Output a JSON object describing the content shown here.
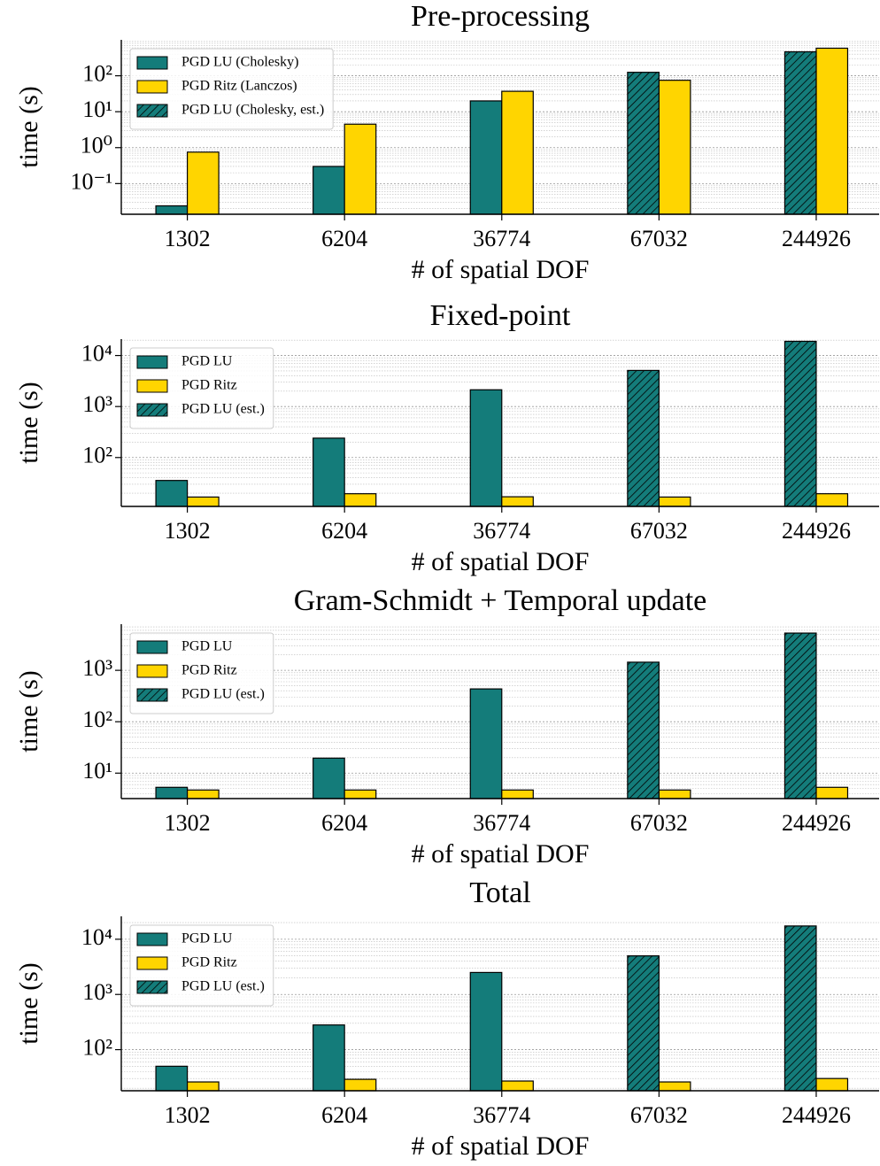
{
  "chart_data": [
    {
      "type": "bar",
      "title": "Pre-processing",
      "xlabel": "# of spatial DOF",
      "ylabel": "time (s)",
      "categories": [
        "1302",
        "6204",
        "36774",
        "67032",
        "244926"
      ],
      "log_scale": true,
      "grid": true,
      "legend": "upper left",
      "ylim": [
        0.014,
        1000
      ],
      "yticks": [
        {
          "value": 0.1,
          "label": "10⁻¹"
        },
        {
          "value": 1,
          "label": "10⁰"
        },
        {
          "value": 10,
          "label": "10¹"
        },
        {
          "value": 100,
          "label": "10²"
        }
      ],
      "series": [
        {
          "name": "PGD LU (Cholesky)",
          "color": "#147c7a",
          "hatch": false,
          "values": [
            0.024,
            0.3,
            20,
            null,
            null
          ]
        },
        {
          "name": "PGD Ritz (Lanczos)",
          "color": "#ffd500",
          "hatch": false,
          "values": [
            0.75,
            4.5,
            37,
            75,
            585
          ]
        },
        {
          "name": "PGD LU (Cholesky, est.)",
          "color": "#147c7a",
          "hatch": true,
          "values": [
            null,
            null,
            null,
            125,
            465
          ]
        }
      ]
    },
    {
      "type": "bar",
      "title": "Fixed-point",
      "xlabel": "# of spatial DOF",
      "ylabel": "time (s)",
      "categories": [
        "1302",
        "6204",
        "36774",
        "67032",
        "244926"
      ],
      "log_scale": true,
      "grid": true,
      "legend": "upper left",
      "ylim": [
        11,
        21000
      ],
      "yticks": [
        {
          "value": 100,
          "label": "10²"
        },
        {
          "value": 1000,
          "label": "10³"
        },
        {
          "value": 10000,
          "label": "10⁴"
        }
      ],
      "series": [
        {
          "name": "PGD LU",
          "color": "#147c7a",
          "hatch": false,
          "values": [
            35.5,
            240,
            2130,
            null,
            null
          ]
        },
        {
          "name": "PGD Ritz",
          "color": "#ffd500",
          "hatch": false,
          "values": [
            16.8,
            19.5,
            17,
            16.8,
            19.5
          ]
        },
        {
          "name": "PGD LU (est.)",
          "color": "#147c7a",
          "hatch": true,
          "values": [
            null,
            null,
            null,
            5100,
            19000
          ]
        }
      ]
    },
    {
      "type": "bar",
      "title": "Gram-Schmidt + Temporal update",
      "xlabel": "# of spatial DOF",
      "ylabel": "time (s)",
      "categories": [
        "1302",
        "6204",
        "36774",
        "67032",
        "244926"
      ],
      "log_scale": true,
      "grid": true,
      "legend": "upper left",
      "ylim": [
        3.2,
        7900
      ],
      "yticks": [
        {
          "value": 10,
          "label": "10¹"
        },
        {
          "value": 100,
          "label": "10²"
        },
        {
          "value": 1000,
          "label": "10³"
        }
      ],
      "series": [
        {
          "name": "PGD LU",
          "color": "#147c7a",
          "hatch": false,
          "values": [
            5.3,
            19.6,
            435,
            null,
            null
          ]
        },
        {
          "name": "PGD Ritz",
          "color": "#ffd500",
          "hatch": false,
          "values": [
            4.7,
            4.7,
            4.7,
            4.7,
            5.3
          ]
        },
        {
          "name": "PGD LU (est.)",
          "color": "#147c7a",
          "hatch": true,
          "values": [
            null,
            null,
            null,
            1440,
            5300
          ]
        }
      ]
    },
    {
      "type": "bar",
      "title": "Total",
      "xlabel": "# of spatial DOF",
      "ylabel": "time (s)",
      "categories": [
        "1302",
        "6204",
        "36774",
        "67032",
        "244926"
      ],
      "log_scale": true,
      "grid": true,
      "legend": "upper left",
      "ylim": [
        18,
        26000
      ],
      "yticks": [
        {
          "value": 100,
          "label": "10²"
        },
        {
          "value": 1000,
          "label": "10³"
        },
        {
          "value": 10000,
          "label": "10⁴"
        }
      ],
      "series": [
        {
          "name": "PGD LU",
          "color": "#147c7a",
          "hatch": false,
          "values": [
            50,
            280,
            2500,
            null,
            null
          ]
        },
        {
          "name": "PGD Ritz",
          "color": "#ffd500",
          "hatch": false,
          "values": [
            26,
            29,
            27,
            26,
            30
          ]
        },
        {
          "name": "PGD LU (est.)",
          "color": "#147c7a",
          "hatch": true,
          "values": [
            null,
            null,
            null,
            5000,
            17400
          ]
        }
      ]
    }
  ]
}
